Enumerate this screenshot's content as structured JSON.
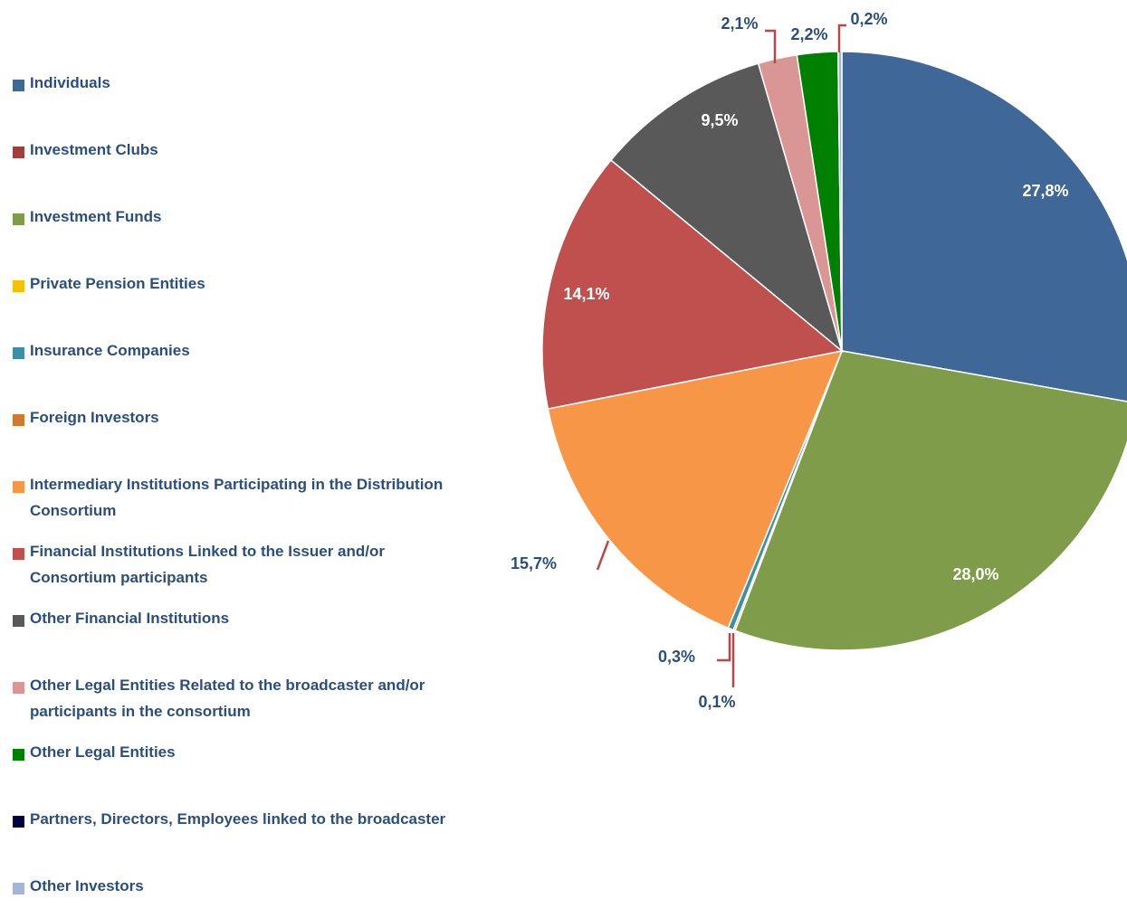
{
  "chart_data": {
    "type": "pie",
    "categories": [
      "Individuals",
      "Investment Clubs",
      "Investment Funds",
      "Private Pension Entities",
      "Insurance Companies",
      "Foreign Investors",
      "Intermediary Institutions Participating in the Distribution Consortium",
      "Financial Institutions Linked to the Issuer and/or Consortium participants",
      "Other Financial Institutions",
      "Other Legal Entities Related to the broadcaster and/or participants in the consortium",
      "Other Legal Entities",
      "Partners, Directors, Employees linked to the broadcaster",
      "Other Investors"
    ],
    "values": [
      27.8,
      0,
      28.0,
      0.1,
      0.3,
      0,
      15.7,
      14.1,
      9.5,
      2.1,
      2.2,
      0,
      0.2
    ],
    "value_labels": [
      "27,8%",
      null,
      "28,0%",
      "0,1%",
      "0,3%",
      null,
      "15,7%",
      "14,1%",
      "9,5%",
      "2,1%",
      "2,2%",
      null,
      "0,2%"
    ],
    "colors": [
      "#3f6898",
      "#a0403e",
      "#7f9c4a",
      "#f5c000",
      "#3d8fa8",
      "#d0792f",
      "#f79646",
      "#c0504d",
      "#595959",
      "#d99694",
      "#008000",
      "#000040",
      "#a5b5d6"
    ],
    "legend": "left"
  }
}
